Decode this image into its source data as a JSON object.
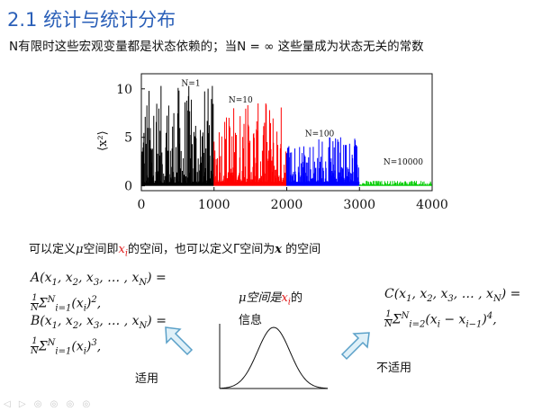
{
  "slide": {
    "title": "2.1 统计与统计分布",
    "subtitle": "N有限时这些宏观变量都是状态依赖的；当N = ∞ 这些量成为状态无关的常数",
    "line2_a": "可以定义",
    "line2_mu": "μ",
    "line2_b": "空间即",
    "line2_xi": "x",
    "line2_i": "i",
    "line2_c": "的空间，也可以定义Γ空间为",
    "line2_x": "x",
    "line2_d": " 的空间",
    "formulaA_1": "A(x",
    "formulaA_2": ", x",
    "formulaA_3": ", x",
    "formulaA_4": ", … , x",
    "formulaA_5": ") =",
    "formulaA_sum": "Σ",
    "formulaA_tail": "(x",
    "formulaA_end": ")",
    "formulaA_punc": ",",
    "formulaB_1": "B(x",
    "formulaB_5": ") =",
    "formulaB_punc": ",",
    "formulaC_1": "C(x",
    "formulaC_5": ") =",
    "formulaC_tail": "(x",
    "formulaC_minus": " − x",
    "formulaC_end": ")",
    "formulaC_punc": ",",
    "sub_1": "1",
    "sub_2": "2",
    "sub_3": "3",
    "sub_N": "N",
    "sub_i": "i",
    "sub_i1": "i−1",
    "sup_2": "2",
    "sup_3": "3",
    "sup_4": "4",
    "sum_lo_1": "i=1",
    "sum_lo_2": "i=2",
    "sum_hi": "N",
    "frac_num": "1",
    "frac_den": "N",
    "mu_label_1": "μ空间是",
    "mu_label_xi": "x",
    "mu_label_i": "i",
    "mu_label_2": "的",
    "mu_label_3": "信息",
    "applies": "适用",
    "not_applies": "不适用",
    "toolbar": "◁ ▷ ◎ ◎ ◎ ◎"
  },
  "chart_data": {
    "type": "line",
    "x_ticks": [
      0,
      1000,
      2000,
      3000,
      4000
    ],
    "y_ticks": [
      0,
      5,
      10
    ],
    "xlim": [
      0,
      4000
    ],
    "ylim": [
      -0.5,
      11
    ],
    "ylabel": "⟨x²⟩",
    "annotations": [
      {
        "text": "N=1",
        "x": 550,
        "y": 10.3
      },
      {
        "text": "N=10",
        "x": 1200,
        "y": 8.6
      },
      {
        "text": "N=100",
        "x": 2250,
        "y": 5.1
      },
      {
        "text": "N=10000",
        "x": 3330,
        "y": 2.2
      }
    ],
    "series": [
      {
        "name": "N=1",
        "color": "#000000",
        "x_range": [
          0,
          1000
        ],
        "baseline": 0.3,
        "max_spike": 10.3,
        "n": 170
      },
      {
        "name": "N=10",
        "color": "#ff0000",
        "x_range": [
          1000,
          2000
        ],
        "baseline": 0.4,
        "max_spike": 8.5,
        "n": 170
      },
      {
        "name": "N=100",
        "color": "#0000ff",
        "x_range": [
          2000,
          3000
        ],
        "baseline": 0.4,
        "max_spike": 5.0,
        "n": 170
      },
      {
        "name": "N=10000",
        "color": "#00cc00",
        "x_range": [
          3000,
          4000
        ],
        "baseline": 0.1,
        "max_spike": 0.5,
        "n": 170
      }
    ]
  }
}
